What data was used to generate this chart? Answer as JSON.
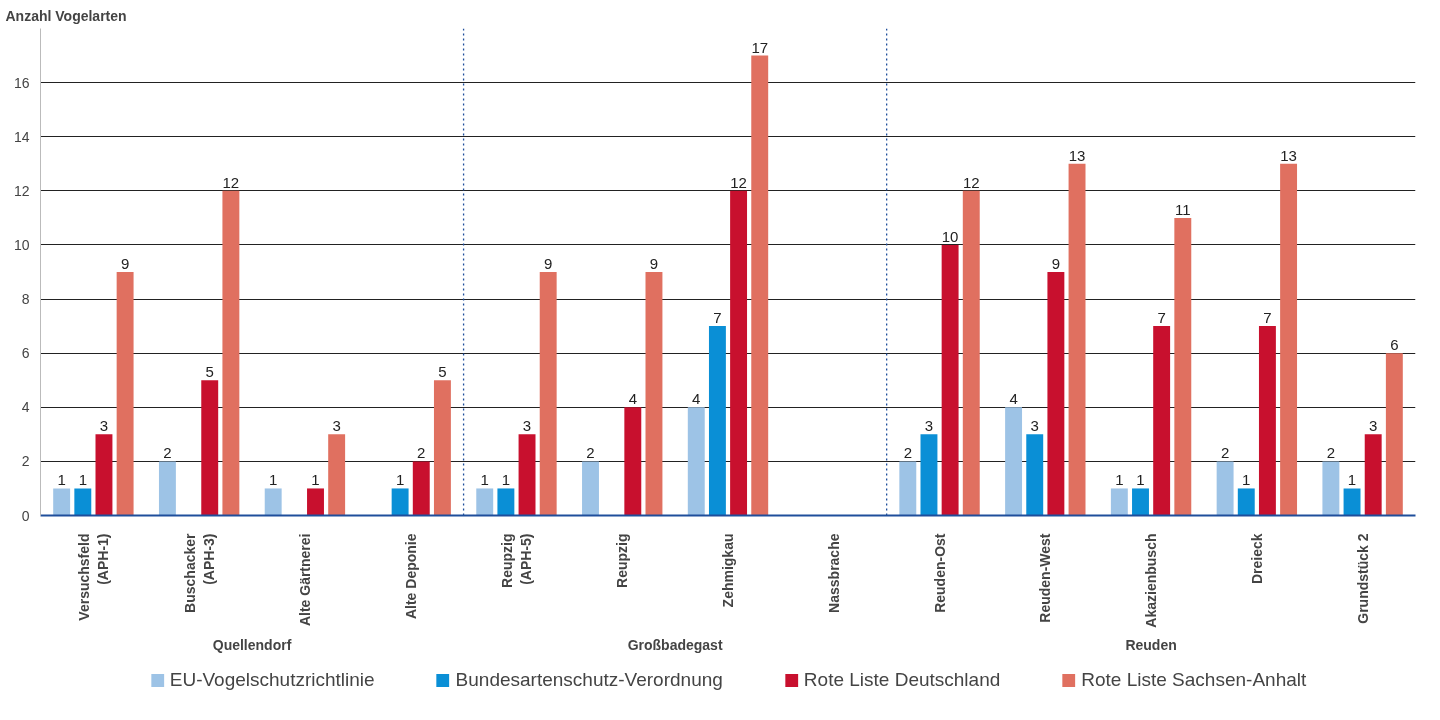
{
  "chart_data": {
    "type": "bar",
    "ylabel": "Anzahl Vogelarten",
    "categories": [
      "Versuchsfeld\n(APH-1)",
      "Buschacker\n(APH-3)",
      "Alte Gärtnerei",
      "Alte Deponie",
      "Reupzig\n(APH-5)",
      "Reupzig",
      "Zehmigkau",
      "Nassbrache",
      "Reuden-Ost",
      "Reuden-West",
      "Akazienbusch",
      "Dreieck",
      "Grundstück 2"
    ],
    "series": [
      {
        "name": "EU-Vogelschutzrichtlinie",
        "color": "#9dc3e6",
        "values": [
          1,
          2,
          1,
          null,
          1,
          2,
          4,
          null,
          2,
          4,
          1,
          2,
          2
        ]
      },
      {
        "name": "Bundesartenschutz-Verordnung",
        "color": "#0a8fd6",
        "values": [
          1,
          null,
          null,
          1,
          1,
          null,
          7,
          null,
          3,
          3,
          1,
          1,
          1
        ]
      },
      {
        "name": "Rote Liste Deutschland",
        "color": "#c8102e",
        "values": [
          3,
          5,
          1,
          2,
          3,
          4,
          12,
          null,
          10,
          9,
          7,
          7,
          3
        ]
      },
      {
        "name": "Rote Liste Sachsen-Anhalt",
        "color": "#e07060",
        "values": [
          9,
          12,
          3,
          5,
          9,
          9,
          17,
          null,
          12,
          13,
          11,
          13,
          6
        ]
      }
    ],
    "annotations": [
      "Quellendorf",
      "Großbadegast",
      "Reuden"
    ],
    "ylim": [
      0,
      18
    ],
    "yticks": [
      0,
      2,
      4,
      6,
      8,
      10,
      12,
      14,
      16
    ],
    "grid": "y",
    "legend": "bottom",
    "data_labels": true
  }
}
